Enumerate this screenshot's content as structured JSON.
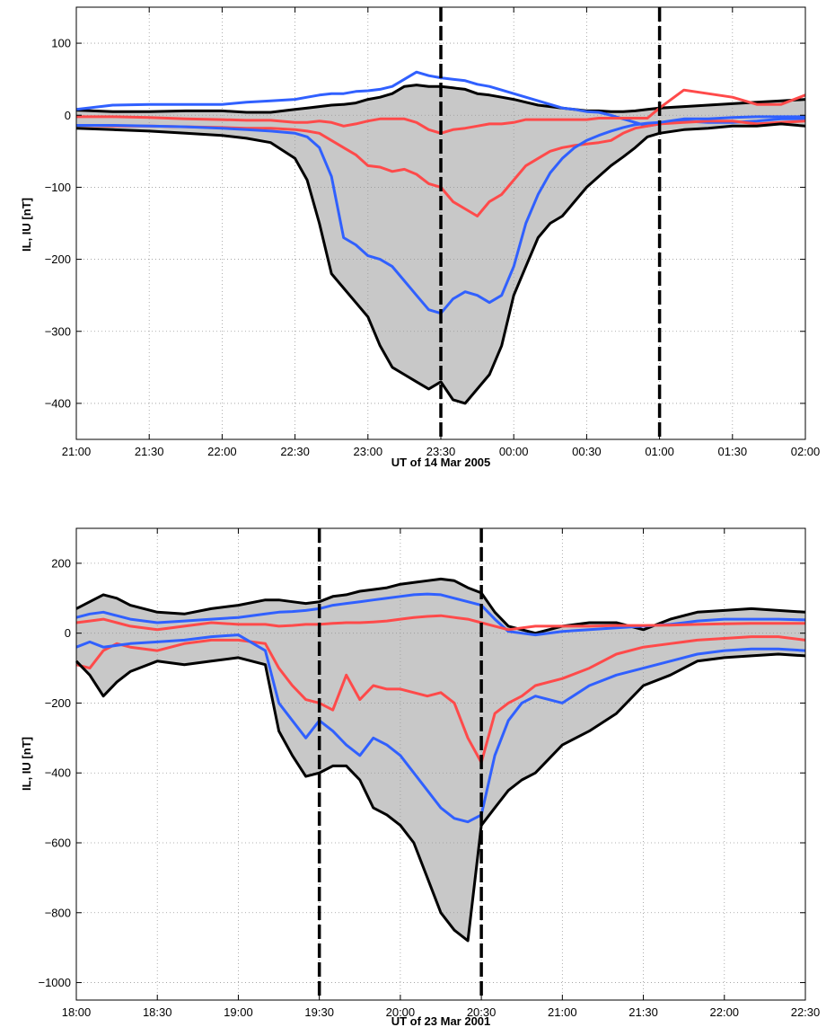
{
  "chart_data": [
    {
      "type": "line",
      "xlabel": "UT of 14 Mar 2005",
      "ylabel": "IL, IU [nT]",
      "x_ticks": [
        "21:00",
        "21:30",
        "22:00",
        "22:30",
        "23:00",
        "23:30",
        "00:00",
        "00:30",
        "01:00",
        "01:30",
        "02:00"
      ],
      "x_tick_minutes": [
        0,
        30,
        60,
        90,
        120,
        150,
        180,
        210,
        240,
        270,
        300
      ],
      "xlim_minutes": [
        0,
        300
      ],
      "ylim": [
        -450,
        150
      ],
      "y_ticks": [
        100,
        0,
        -100,
        -200,
        -300,
        -400
      ],
      "grid": true,
      "vlines_minutes": [
        150,
        240
      ],
      "x_minutes": [
        0,
        15,
        30,
        45,
        60,
        70,
        80,
        90,
        95,
        100,
        105,
        110,
        115,
        120,
        125,
        130,
        135,
        140,
        145,
        150,
        155,
        160,
        165,
        170,
        175,
        180,
        185,
        190,
        195,
        200,
        205,
        210,
        215,
        220,
        225,
        230,
        235,
        240,
        250,
        260,
        270,
        280,
        290,
        300
      ],
      "series": [
        {
          "color": "#000000",
          "values": [
            7,
            5,
            5,
            6,
            6,
            4,
            4,
            8,
            10,
            12,
            14,
            15,
            17,
            22,
            25,
            30,
            40,
            42,
            40,
            40,
            38,
            36,
            30,
            28,
            25,
            22,
            18,
            14,
            12,
            10,
            8,
            6,
            6,
            5,
            5,
            6,
            8,
            10,
            12,
            14,
            16,
            18,
            20,
            22
          ]
        },
        {
          "color": "#3060ff",
          "values": [
            8,
            14,
            15,
            15,
            15,
            18,
            20,
            22,
            25,
            28,
            30,
            30,
            33,
            34,
            36,
            40,
            50,
            60,
            55,
            52,
            50,
            48,
            43,
            40,
            35,
            30,
            25,
            20,
            15,
            10,
            8,
            5,
            4,
            0,
            -5,
            -10,
            -15,
            -12,
            -8,
            -10,
            -10,
            -8,
            -5,
            -5
          ]
        },
        {
          "color": "#ff4a4a",
          "values": [
            -2,
            -2,
            -3,
            -5,
            -6,
            -7,
            -7,
            -10,
            -10,
            -8,
            -10,
            -15,
            -12,
            -8,
            -5,
            -5,
            -5,
            -10,
            -20,
            -25,
            -20,
            -18,
            -15,
            -12,
            -12,
            -10,
            -6,
            -6,
            -6,
            -6,
            -6,
            -6,
            -4,
            -4,
            -4,
            -4,
            -4,
            10,
            35,
            30,
            25,
            15,
            15,
            28
          ]
        },
        {
          "color": "#ff4a4a",
          "values": [
            -14,
            -15,
            -15,
            -16,
            -17,
            -18,
            -18,
            -20,
            -22,
            -25,
            -35,
            -45,
            -55,
            -70,
            -72,
            -78,
            -75,
            -82,
            -95,
            -100,
            -120,
            -130,
            -140,
            -120,
            -110,
            -90,
            -70,
            -60,
            -50,
            -45,
            -42,
            -40,
            -38,
            -35,
            -25,
            -18,
            -15,
            -12,
            -10,
            -8,
            -8,
            -12,
            -10,
            -8
          ]
        },
        {
          "color": "#3060ff",
          "values": [
            -14,
            -14,
            -15,
            -16,
            -18,
            -20,
            -22,
            -25,
            -30,
            -45,
            -85,
            -170,
            -180,
            -195,
            -200,
            -210,
            -230,
            -250,
            -270,
            -275,
            -255,
            -245,
            -250,
            -260,
            -250,
            -210,
            -150,
            -110,
            -80,
            -60,
            -45,
            -35,
            -28,
            -22,
            -17,
            -13,
            -11,
            -10,
            -5,
            -5,
            -3,
            -2,
            -2,
            -2
          ]
        },
        {
          "color": "#000000",
          "values": [
            -18,
            -20,
            -22,
            -25,
            -28,
            -32,
            -38,
            -60,
            -90,
            -150,
            -220,
            -240,
            -260,
            -280,
            -320,
            -350,
            -360,
            -370,
            -380,
            -370,
            -395,
            -400,
            -380,
            -360,
            -320,
            -250,
            -210,
            -170,
            -150,
            -140,
            -120,
            -100,
            -85,
            -70,
            -58,
            -45,
            -30,
            -25,
            -20,
            -18,
            -15,
            -15,
            -12,
            -15
          ]
        }
      ]
    },
    {
      "type": "line",
      "xlabel": "UT of 23 Mar 2001",
      "ylabel": "IL, IU [nT]",
      "x_ticks": [
        "18:00",
        "18:30",
        "19:00",
        "19:30",
        "20:00",
        "20:30",
        "21:00",
        "21:30",
        "22:00",
        "22:30"
      ],
      "x_tick_minutes": [
        0,
        30,
        60,
        90,
        120,
        150,
        180,
        210,
        240,
        270
      ],
      "xlim_minutes": [
        0,
        270
      ],
      "ylim": [
        -1050,
        300
      ],
      "y_ticks": [
        200,
        0,
        -200,
        -400,
        -600,
        -800,
        -1000
      ],
      "grid": true,
      "vlines_minutes": [
        90,
        150
      ],
      "x_minutes": [
        0,
        5,
        10,
        15,
        20,
        30,
        40,
        50,
        60,
        70,
        75,
        80,
        85,
        90,
        95,
        100,
        105,
        110,
        115,
        120,
        125,
        130,
        135,
        140,
        145,
        150,
        155,
        160,
        165,
        170,
        180,
        190,
        200,
        210,
        220,
        230,
        240,
        250,
        260,
        270
      ],
      "series": [
        {
          "color": "#000000",
          "values": [
            70,
            90,
            110,
            100,
            80,
            60,
            55,
            70,
            80,
            95,
            95,
            90,
            85,
            90,
            105,
            110,
            120,
            125,
            130,
            140,
            145,
            150,
            155,
            150,
            130,
            115,
            60,
            20,
            10,
            0,
            20,
            30,
            30,
            10,
            40,
            60,
            65,
            70,
            65,
            60
          ]
        },
        {
          "color": "#3060ff",
          "values": [
            45,
            55,
            60,
            50,
            40,
            30,
            35,
            40,
            45,
            55,
            60,
            62,
            65,
            70,
            80,
            85,
            90,
            95,
            100,
            105,
            110,
            112,
            110,
            100,
            90,
            80,
            40,
            5,
            0,
            -5,
            5,
            10,
            15,
            20,
            25,
            35,
            40,
            40,
            40,
            38
          ]
        },
        {
          "color": "#ff4a4a",
          "values": [
            30,
            35,
            40,
            30,
            20,
            10,
            20,
            30,
            25,
            25,
            20,
            22,
            25,
            25,
            28,
            30,
            30,
            32,
            35,
            40,
            45,
            48,
            50,
            45,
            40,
            30,
            20,
            10,
            15,
            20,
            20,
            20,
            22,
            22,
            23,
            25,
            27,
            28,
            28,
            28
          ]
        },
        {
          "color": "#ff4a4a",
          "values": [
            -90,
            -100,
            -50,
            -30,
            -40,
            -50,
            -30,
            -20,
            -20,
            -30,
            -100,
            -150,
            -190,
            -200,
            -220,
            -120,
            -190,
            -150,
            -160,
            -160,
            -170,
            -180,
            -170,
            -200,
            -300,
            -370,
            -230,
            -200,
            -180,
            -150,
            -130,
            -100,
            -60,
            -40,
            -30,
            -20,
            -15,
            -10,
            -10,
            -20
          ]
        },
        {
          "color": "#3060ff",
          "values": [
            -40,
            -25,
            -40,
            -35,
            -30,
            -25,
            -20,
            -10,
            -5,
            -50,
            -200,
            -250,
            -300,
            -250,
            -280,
            -320,
            -350,
            -300,
            -320,
            -350,
            -400,
            -450,
            -500,
            -530,
            -540,
            -520,
            -350,
            -250,
            -200,
            -180,
            -200,
            -150,
            -120,
            -100,
            -80,
            -60,
            -50,
            -45,
            -45,
            -50
          ]
        },
        {
          "color": "#000000",
          "values": [
            -80,
            -120,
            -180,
            -140,
            -110,
            -80,
            -90,
            -80,
            -70,
            -90,
            -280,
            -350,
            -410,
            -400,
            -380,
            -380,
            -420,
            -500,
            -520,
            -550,
            -600,
            -700,
            -800,
            -850,
            -880,
            -550,
            -500,
            -450,
            -420,
            -400,
            -320,
            -280,
            -230,
            -150,
            -120,
            -80,
            -70,
            -65,
            -60,
            -65
          ]
        }
      ]
    }
  ]
}
